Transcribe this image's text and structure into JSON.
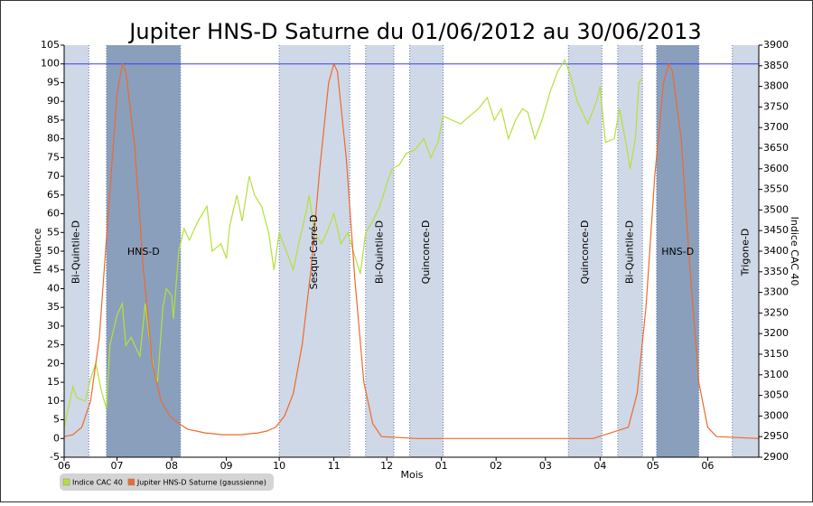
{
  "chart_data": {
    "type": "line",
    "title": "Jupiter HNS-D Saturne du 01/06/2012 au 30/06/2013",
    "xlabel": "Mois",
    "ylabel": "Influence",
    "y2label": "Indice CAC 40",
    "xlim": [
      0,
      394
    ],
    "xticks": [
      {
        "value": 0,
        "label": "06"
      },
      {
        "value": 30,
        "label": "07"
      },
      {
        "value": 61,
        "label": "08"
      },
      {
        "value": 92,
        "label": "09"
      },
      {
        "value": 122,
        "label": "10"
      },
      {
        "value": 153,
        "label": "11"
      },
      {
        "value": 183,
        "label": "12"
      },
      {
        "value": 214,
        "label": "01"
      },
      {
        "value": 245,
        "label": "02"
      },
      {
        "value": 273,
        "label": "03"
      },
      {
        "value": 304,
        "label": "04"
      },
      {
        "value": 334,
        "label": "05"
      },
      {
        "value": 365,
        "label": "06"
      }
    ],
    "ylim": [
      -5,
      105
    ],
    "yticks": [
      -5,
      0,
      5,
      10,
      15,
      20,
      25,
      30,
      35,
      40,
      45,
      50,
      55,
      60,
      65,
      70,
      75,
      80,
      85,
      90,
      95,
      100,
      105
    ],
    "y2lim": [
      2900,
      3900
    ],
    "y2ticks": [
      2900,
      2950,
      3000,
      3050,
      3100,
      3150,
      3200,
      3250,
      3300,
      3350,
      3400,
      3450,
      3500,
      3550,
      3600,
      3650,
      3700,
      3750,
      3800,
      3850,
      3900
    ],
    "reference_line": {
      "value": 100,
      "color": "#3b3bff"
    },
    "periods": [
      {
        "start": 0,
        "end": 14,
        "label": "Bi-Quintile-D",
        "color": "#cfd8e6"
      },
      {
        "start": 24,
        "end": 66,
        "label": "HNS-D",
        "color": "#8a9fbc"
      },
      {
        "start": 122,
        "end": 162,
        "label": "Sesqui-Carré-D",
        "color": "#cfd8e6"
      },
      {
        "start": 171,
        "end": 187,
        "label": "Bi-Quintile-D",
        "color": "#cfd8e6"
      },
      {
        "start": 196,
        "end": 215,
        "label": "Quinconce-D",
        "color": "#cfd8e6"
      },
      {
        "start": 286,
        "end": 305,
        "label": "Quinconce-D",
        "color": "#cfd8e6"
      },
      {
        "start": 314,
        "end": 328,
        "label": "Bi-Quintile-D",
        "color": "#cfd8e6"
      },
      {
        "start": 336,
        "end": 360,
        "label": "HNS-D",
        "color": "#8a9fbc"
      },
      {
        "start": 379,
        "end": 394,
        "label": "Trigone-D",
        "color": "#cfd8e6"
      }
    ],
    "series": [
      {
        "name": "Indice CAC 40",
        "color": "#b5e03a",
        "axis": "y2",
        "x": [
          0,
          5,
          7,
          12,
          15,
          18,
          21,
          24,
          26,
          30,
          33,
          35,
          38,
          40,
          43,
          46,
          48,
          51,
          53,
          56,
          58,
          61,
          62,
          65,
          68,
          71,
          76,
          81,
          84,
          89,
          92,
          94,
          98,
          101,
          105,
          108,
          112,
          116,
          119,
          122,
          126,
          130,
          133,
          137,
          139,
          142,
          146,
          149,
          153,
          157,
          161,
          164,
          168,
          171,
          175,
          179,
          183,
          186,
          190,
          194,
          199,
          204,
          208,
          212,
          215,
          220,
          225,
          230,
          235,
          240,
          244,
          248,
          252,
          256,
          260,
          263,
          267,
          271,
          276,
          280,
          284,
          287,
          291,
          297,
          302,
          304,
          307,
          312,
          315,
          319,
          321,
          324,
          326,
          328
        ],
        "values": [
          2972,
          3072,
          3045,
          3036,
          3091,
          3127,
          3063,
          3018,
          3172,
          3245,
          3273,
          3172,
          3191,
          3172,
          3145,
          3273,
          3200,
          3109,
          3082,
          3264,
          3309,
          3291,
          3236,
          3400,
          3455,
          3427,
          3473,
          3509,
          3400,
          3418,
          3382,
          3464,
          3536,
          3473,
          3582,
          3536,
          3509,
          3445,
          3355,
          3445,
          3400,
          3355,
          3418,
          3491,
          3536,
          3445,
          3418,
          3445,
          3491,
          3418,
          3445,
          3400,
          3345,
          3445,
          3473,
          3509,
          3564,
          3600,
          3609,
          3637,
          3646,
          3673,
          3627,
          3664,
          3728,
          3718,
          3709,
          3728,
          3746,
          3773,
          3718,
          3746,
          3673,
          3718,
          3746,
          3737,
          3673,
          3718,
          3791,
          3837,
          3864,
          3828,
          3764,
          3709,
          3764,
          3800,
          3664,
          3673,
          3746,
          3655,
          3600,
          3673,
          3810,
          3819
        ]
      },
      {
        "name": "Jupiter HNS-D Saturne (gaussienne)",
        "color": "#ee6a2e",
        "x": [
          0,
          5,
          10,
          15,
          20,
          25,
          30,
          33,
          35,
          40,
          45,
          50,
          55,
          60,
          65,
          70,
          80,
          90,
          100,
          110,
          115,
          120,
          125,
          130,
          135,
          140,
          145,
          150,
          153,
          155,
          160,
          165,
          170,
          175,
          180,
          200,
          250,
          300,
          320,
          325,
          330,
          335,
          340,
          343,
          345,
          350,
          355,
          360,
          365,
          370,
          394
        ],
        "values": [
          0.5,
          1,
          3,
          10,
          27,
          60,
          92,
          100,
          98,
          78,
          45,
          20,
          10,
          6,
          4,
          2.5,
          1.5,
          1,
          1,
          1.5,
          2,
          3,
          6,
          12,
          25,
          45,
          72,
          95,
          100,
          98,
          75,
          42,
          15,
          4,
          0.5,
          0,
          0,
          0,
          3,
          12,
          35,
          70,
          95,
          100,
          98,
          80,
          45,
          15,
          3,
          0.5,
          0
        ]
      }
    ]
  }
}
